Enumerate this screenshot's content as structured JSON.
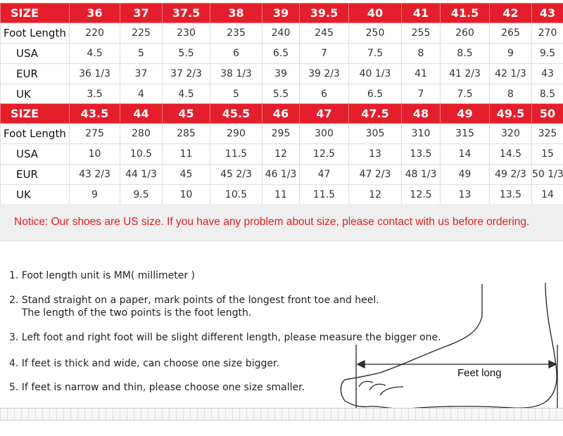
{
  "tables": [
    {
      "size_label": "SIZE",
      "sizes": [
        "36",
        "37",
        "37.5",
        "38",
        "39",
        "39.5",
        "40",
        "41",
        "41.5",
        "42",
        "43"
      ],
      "rows": [
        {
          "label": "Foot Length",
          "values": [
            "220",
            "225",
            "230",
            "235",
            "240",
            "245",
            "250",
            "255",
            "260",
            "265",
            "270"
          ]
        },
        {
          "label": "USA",
          "values": [
            "4.5",
            "5",
            "5.5",
            "6",
            "6.5",
            "7",
            "7.5",
            "8",
            "8.5",
            "9",
            "9.5"
          ]
        },
        {
          "label": "EUR",
          "values": [
            "36 1/3",
            "37",
            "37 2/3",
            "38 1/3",
            "39",
            "39 2/3",
            "40 1/3",
            "41",
            "41 2/3",
            "42 1/3",
            "43"
          ]
        },
        {
          "label": "UK",
          "values": [
            "3.5",
            "4",
            "4.5",
            "5",
            "5.5",
            "6",
            "6.5",
            "7",
            "7.5",
            "8",
            "8.5"
          ]
        }
      ]
    },
    {
      "size_label": "SIZE",
      "sizes": [
        "43.5",
        "44",
        "45",
        "45.5",
        "46",
        "47",
        "47.5",
        "48",
        "49",
        "49.5",
        "50"
      ],
      "rows": [
        {
          "label": "Foot Length",
          "values": [
            "275",
            "280",
            "285",
            "290",
            "295",
            "300",
            "305",
            "310",
            "315",
            "320",
            "325"
          ]
        },
        {
          "label": "USA",
          "values": [
            "10",
            "10.5",
            "11",
            "11.5",
            "12",
            "12.5",
            "13",
            "13.5",
            "14",
            "14.5",
            "15"
          ]
        },
        {
          "label": "EUR",
          "values": [
            "43 2/3",
            "44 1/3",
            "45",
            "45 2/3",
            "46 1/3",
            "47",
            "47 2/3",
            "48 1/3",
            "49",
            "49 2/3",
            "50 1/3"
          ]
        },
        {
          "label": "UK",
          "values": [
            "9",
            "9.5",
            "10",
            "10.5",
            "11",
            "11.5",
            "12",
            "12.5",
            "13",
            "13.5",
            "14"
          ]
        }
      ]
    }
  ],
  "notice": "Notice: Our shoes are US size. If you have any problem about size, please contact with us before ordering.",
  "steps": [
    "1. Foot length unit is MM( millimeter )",
    "2. Stand straight on a paper, mark points of the longest front toe and heel.",
    "    The length of the two points is the foot length.",
    "3. Left foot and right foot will be slight different length, please measure the bigger one.",
    "4. If feet is thick and wide, can choose one size bigger.",
    "5. If feet is narrow and thin, please choose one size smaller."
  ],
  "diagram_label": "Feet long",
  "colors": {
    "header": "#e41e2b",
    "notice_text": "#e02020"
  }
}
